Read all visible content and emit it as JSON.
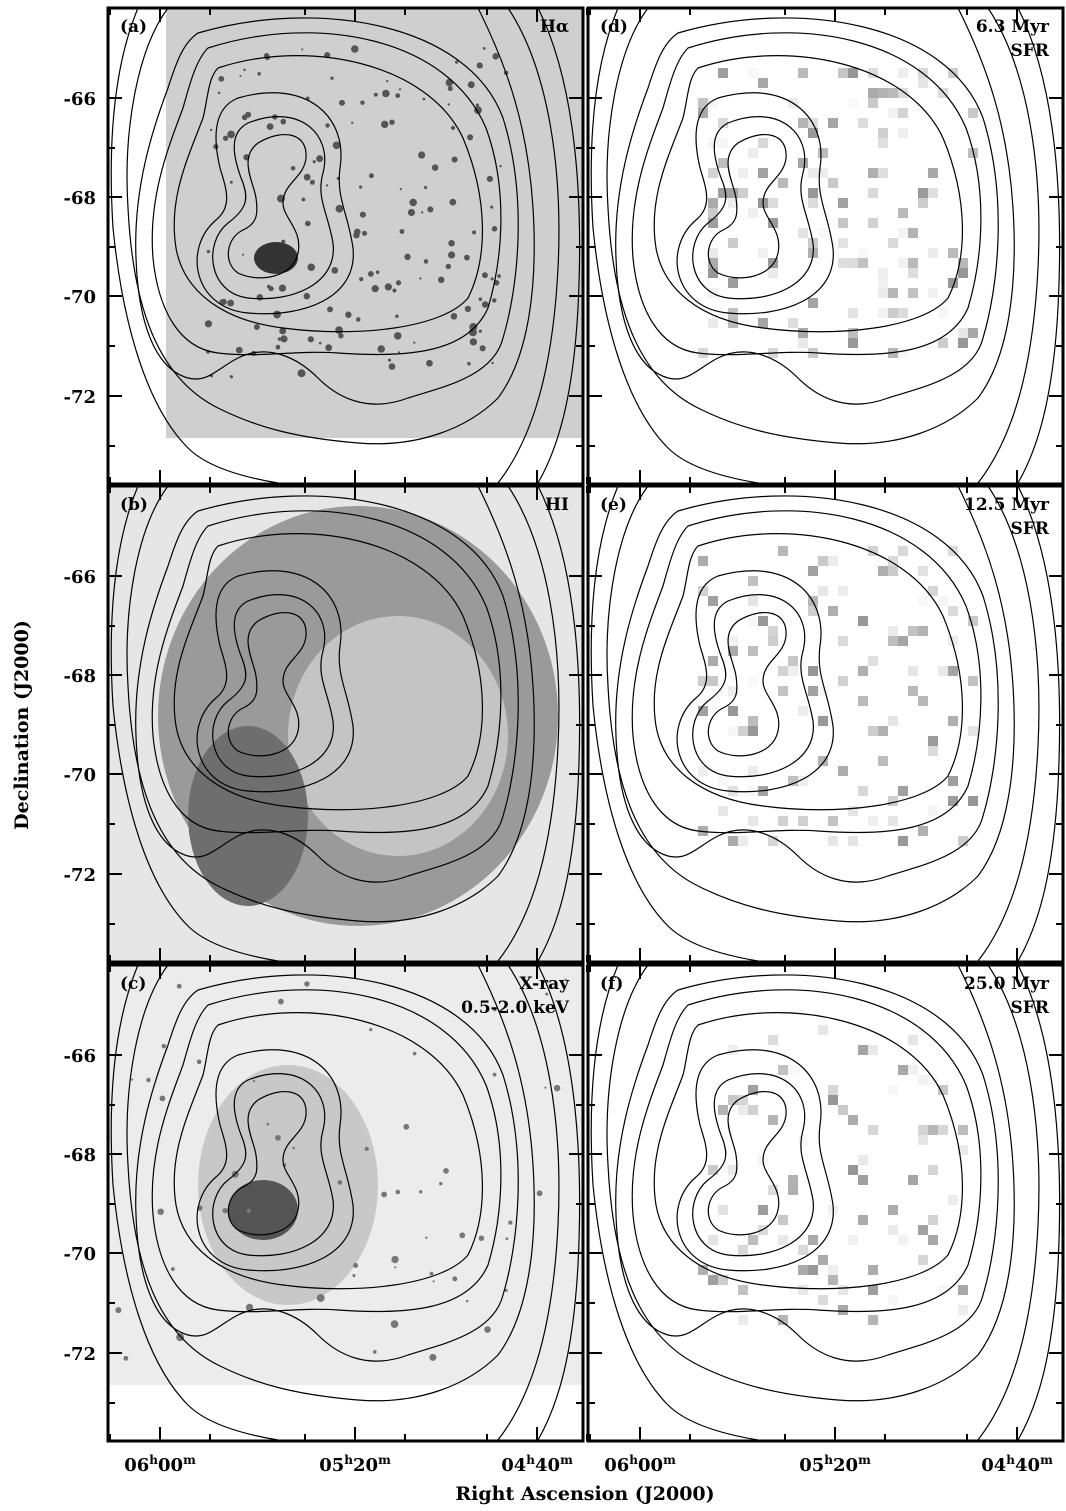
{
  "panels": [
    {
      "tag": "(a)",
      "label": [
        "Hα"
      ]
    },
    {
      "tag": "(b)",
      "label": [
        "HI"
      ]
    },
    {
      "tag": "(c)",
      "label": [
        "X-ray",
        "0.5-2.0 keV"
      ]
    },
    {
      "tag": "(d)",
      "label": [
        "6.3 Myr",
        "SFR"
      ]
    },
    {
      "tag": "(e)",
      "label": [
        "12.5 Myr",
        "SFR"
      ]
    },
    {
      "tag": "(f)",
      "label": [
        "25.0 Myr",
        "SFR"
      ]
    }
  ],
  "y_axis": {
    "title": "Declination (J2000)",
    "ticks": [
      "-66",
      "-68",
      "-70",
      "-72"
    ]
  },
  "x_axis": {
    "title": "Right Ascension (J2000)",
    "ticks": [
      [
        "06",
        "h",
        "00",
        "m"
      ],
      [
        "05",
        "h",
        "20",
        "m"
      ],
      [
        "04",
        "h",
        "40",
        "m"
      ]
    ]
  }
}
